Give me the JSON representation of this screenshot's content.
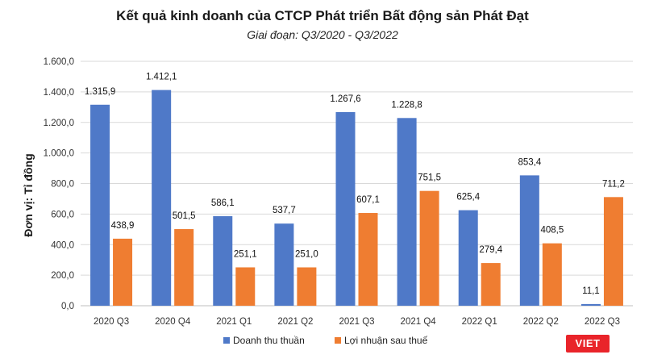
{
  "chart_data": {
    "type": "bar",
    "title": "Kết quả kinh doanh của CTCP Phát triển Bất động sản Phát Đạt",
    "subtitle": "Giai đoạn: Q3/2020 - Q3/2022",
    "xlabel": "",
    "ylabel": "Đơn vị: Tỉ đồng",
    "ylim": [
      0,
      1600
    ],
    "yticks": [
      0,
      200,
      400,
      600,
      800,
      1000,
      1200,
      1400,
      1600
    ],
    "ytick_labels": [
      "0,0",
      "200,0",
      "400,0",
      "600,0",
      "800,0",
      "1.000,0",
      "1.200,0",
      "1.400,0",
      "1.600,0"
    ],
    "grid": true,
    "legend_position": "bottom",
    "categories": [
      "2020 Q3",
      "2020 Q4",
      "2021 Q1",
      "2021 Q2",
      "2021 Q3",
      "2021 Q4",
      "2022 Q1",
      "2022 Q2",
      "2022 Q3"
    ],
    "series": [
      {
        "name": "Doanh thu thuần",
        "color": "#4f79c8",
        "values": [
          1315.9,
          1412.1,
          586.1,
          537.7,
          1267.6,
          1228.8,
          625.4,
          853.4,
          11.1
        ],
        "labels": [
          "1.315,9",
          "1.412,1",
          "586,1",
          "537,7",
          "1.267,6",
          "1.228,8",
          "625,4",
          "853,4",
          "11,1"
        ]
      },
      {
        "name": "Lợi nhuận sau thuế",
        "color": "#ef7d31",
        "values": [
          438.9,
          501.5,
          251.1,
          251.0,
          607.1,
          751.5,
          279.4,
          408.5,
          711.2
        ],
        "labels": [
          "438,9",
          "501,5",
          "251,1",
          "251,0",
          "607,1",
          "751,5",
          "279,4",
          "408,5",
          "711,2"
        ]
      }
    ]
  },
  "watermark": "VIET"
}
